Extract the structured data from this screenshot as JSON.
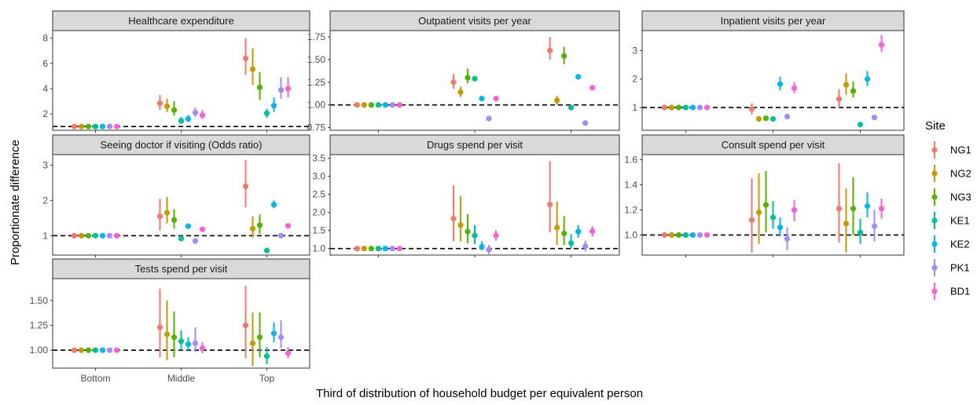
{
  "y_axis_title": "Proportionate difference",
  "x_axis_title": "Third of distribution of household budget per equivalent person",
  "legend": {
    "title": "Site",
    "entries": [
      {
        "name": "NG1",
        "color": "#F8766D"
      },
      {
        "name": "NG2",
        "color": "#C49A00"
      },
      {
        "name": "NG3",
        "color": "#53B400"
      },
      {
        "name": "KE1",
        "color": "#00C094"
      },
      {
        "name": "KE2",
        "color": "#00B6EB"
      },
      {
        "name": "PK1",
        "color": "#A58AFF"
      },
      {
        "name": "BD1",
        "color": "#FB61D7"
      }
    ]
  },
  "chart_data": [
    {
      "type": "scatter",
      "title": "Healthcare expenditure",
      "categories": [
        "Bottom",
        "Middle",
        "Top"
      ],
      "ylim": [
        0.7,
        8.6
      ],
      "yticks": [
        2,
        4,
        6,
        8
      ],
      "ytick_labels": [
        "2",
        "4",
        "6",
        "8"
      ],
      "reference_line": 1,
      "series": [
        {
          "name": "NG1",
          "values": [
            1.0,
            2.85,
            6.4
          ],
          "lower": [
            1.0,
            2.3,
            5.1
          ],
          "upper": [
            1.0,
            3.5,
            8.0
          ]
        },
        {
          "name": "NG2",
          "values": [
            1.0,
            2.6,
            5.55
          ],
          "lower": [
            1.0,
            2.15,
            4.3
          ],
          "upper": [
            1.0,
            3.2,
            7.2
          ]
        },
        {
          "name": "NG3",
          "values": [
            1.0,
            2.3,
            4.1
          ],
          "lower": [
            1.0,
            1.85,
            3.1
          ],
          "upper": [
            1.0,
            3.0,
            5.3
          ]
        },
        {
          "name": "KE1",
          "values": [
            1.0,
            1.45,
            2.05
          ],
          "lower": [
            1.0,
            1.25,
            1.7
          ],
          "upper": [
            1.0,
            1.75,
            2.4
          ]
        },
        {
          "name": "KE2",
          "values": [
            1.0,
            1.6,
            2.65
          ],
          "lower": [
            1.0,
            1.35,
            2.15
          ],
          "upper": [
            1.0,
            1.9,
            3.3
          ]
        },
        {
          "name": "PK1",
          "values": [
            1.0,
            2.1,
            3.9
          ],
          "lower": [
            1.0,
            1.75,
            3.2
          ],
          "upper": [
            1.0,
            2.5,
            4.9
          ]
        },
        {
          "name": "BD1",
          "values": [
            1.0,
            1.9,
            4.0
          ],
          "lower": [
            1.0,
            1.6,
            3.3
          ],
          "upper": [
            1.0,
            2.3,
            4.9
          ]
        }
      ]
    },
    {
      "type": "scatter",
      "title": "Outpatient visits per year",
      "categories": [
        "Bottom",
        "Middle",
        "Top"
      ],
      "ylim": [
        0.72,
        1.82
      ],
      "yticks": [
        0.75,
        1.0,
        1.25,
        1.5,
        1.75
      ],
      "ytick_labels": [
        "0.75",
        "1.00",
        "1.25",
        "1.50",
        "1.75"
      ],
      "reference_line": 1,
      "series": [
        {
          "name": "NG1",
          "values": [
            1.0,
            1.25,
            1.6
          ],
          "lower": [
            1.0,
            1.18,
            1.5
          ],
          "upper": [
            1.0,
            1.34,
            1.75
          ]
        },
        {
          "name": "NG2",
          "values": [
            1.0,
            1.14,
            1.05
          ],
          "lower": [
            1.0,
            1.09,
            1.0
          ],
          "upper": [
            1.0,
            1.2,
            1.1
          ]
        },
        {
          "name": "NG3",
          "values": [
            1.0,
            1.3,
            1.54
          ],
          "lower": [
            1.0,
            1.24,
            1.45
          ],
          "upper": [
            1.0,
            1.4,
            1.64
          ]
        },
        {
          "name": "KE1",
          "values": [
            1.0,
            1.29,
            0.97
          ],
          "lower": [
            1.0,
            1.27,
            0.95
          ],
          "upper": [
            1.0,
            1.31,
            0.99
          ]
        },
        {
          "name": "KE2",
          "values": [
            1.0,
            1.07,
            1.31
          ],
          "lower": [
            1.0,
            1.05,
            1.29
          ],
          "upper": [
            1.0,
            1.09,
            1.33
          ]
        },
        {
          "name": "PK1",
          "values": [
            1.0,
            0.85,
            0.8
          ],
          "lower": [
            1.0,
            0.84,
            0.79
          ],
          "upper": [
            1.0,
            0.86,
            0.81
          ]
        },
        {
          "name": "BD1",
          "values": [
            1.0,
            1.07,
            1.19
          ],
          "lower": [
            1.0,
            1.05,
            1.17
          ],
          "upper": [
            1.0,
            1.09,
            1.21
          ]
        }
      ]
    },
    {
      "type": "scatter",
      "title": "Inpatient visits per year",
      "categories": [
        "Bottom",
        "Middle",
        "Top"
      ],
      "ylim": [
        0.2,
        3.7
      ],
      "yticks": [
        1,
        2,
        3
      ],
      "ytick_labels": [
        "1",
        "2",
        "3"
      ],
      "reference_line": 1,
      "series": [
        {
          "name": "NG1",
          "values": [
            1.0,
            0.95,
            1.3
          ],
          "lower": [
            1.0,
            0.75,
            1.0
          ],
          "upper": [
            1.0,
            1.15,
            1.65
          ]
        },
        {
          "name": "NG2",
          "values": [
            1.0,
            0.6,
            1.8
          ],
          "lower": [
            1.0,
            0.5,
            1.45
          ],
          "upper": [
            1.0,
            0.7,
            2.2
          ]
        },
        {
          "name": "NG3",
          "values": [
            1.0,
            0.62,
            1.58
          ],
          "lower": [
            1.0,
            0.55,
            1.35
          ],
          "upper": [
            1.0,
            0.72,
            1.92
          ]
        },
        {
          "name": "KE1",
          "values": [
            1.0,
            0.6,
            0.4
          ],
          "lower": [
            1.0,
            0.58,
            0.38
          ],
          "upper": [
            1.0,
            0.62,
            0.42
          ]
        },
        {
          "name": "KE2",
          "values": [
            1.0,
            1.82,
            2.0
          ],
          "lower": [
            1.0,
            1.6,
            1.75
          ],
          "upper": [
            1.0,
            2.08,
            2.28
          ]
        },
        {
          "name": "PK1",
          "values": [
            1.0,
            0.68,
            0.65
          ],
          "lower": [
            1.0,
            0.66,
            0.63
          ],
          "upper": [
            1.0,
            0.7,
            0.67
          ]
        },
        {
          "name": "BD1",
          "values": [
            1.0,
            1.68,
            3.2
          ],
          "lower": [
            1.0,
            1.5,
            2.95
          ],
          "upper": [
            1.0,
            1.9,
            3.55
          ]
        }
      ]
    },
    {
      "type": "scatter",
      "title": "Seeing doctor if visiting (Odds ratio)",
      "categories": [
        "Bottom",
        "Middle",
        "Top"
      ],
      "ylim": [
        0.45,
        3.3
      ],
      "yticks": [
        1,
        2,
        3
      ],
      "ytick_labels": [
        "1",
        "2",
        "3"
      ],
      "reference_line": 1,
      "series": [
        {
          "name": "NG1",
          "values": [
            1.0,
            1.55,
            2.4
          ],
          "lower": [
            1.0,
            1.15,
            1.8
          ],
          "upper": [
            1.0,
            2.05,
            3.15
          ]
        },
        {
          "name": "NG2",
          "values": [
            1.0,
            1.65,
            1.2
          ],
          "lower": [
            1.0,
            1.35,
            0.95
          ],
          "upper": [
            1.0,
            2.1,
            1.55
          ]
        },
        {
          "name": "NG3",
          "values": [
            1.0,
            1.45,
            1.3
          ],
          "lower": [
            1.0,
            1.2,
            1.05
          ],
          "upper": [
            1.0,
            1.75,
            1.6
          ]
        },
        {
          "name": "KE1",
          "values": [
            1.0,
            0.92,
            0.58
          ],
          "lower": [
            1.0,
            0.9,
            0.56
          ],
          "upper": [
            1.0,
            0.94,
            0.6
          ]
        },
        {
          "name": "KE2",
          "values": [
            1.0,
            1.27,
            1.88
          ],
          "lower": [
            1.0,
            1.25,
            1.78
          ],
          "upper": [
            1.0,
            1.29,
            2.0
          ]
        },
        {
          "name": "PK1",
          "values": [
            1.0,
            0.85,
            1.0
          ],
          "lower": [
            1.0,
            0.83,
            0.95
          ],
          "upper": [
            1.0,
            0.87,
            1.05
          ]
        },
        {
          "name": "BD1",
          "values": [
            1.0,
            1.18,
            1.28
          ],
          "lower": [
            1.0,
            1.16,
            1.26
          ],
          "upper": [
            1.0,
            1.2,
            1.3
          ]
        }
      ]
    },
    {
      "type": "scatter",
      "title": "Drugs spend per visit",
      "categories": [
        "Bottom",
        "Middle",
        "Top"
      ],
      "ylim": [
        0.82,
        3.6
      ],
      "yticks": [
        1.0,
        1.5,
        2.0,
        2.5,
        3.0,
        3.5
      ],
      "ytick_labels": [
        "1.0",
        "1.5",
        "2.0",
        "2.5",
        "3.0",
        "3.5"
      ],
      "reference_line": 1,
      "series": [
        {
          "name": "NG1",
          "values": [
            1.0,
            1.83,
            2.22
          ],
          "lower": [
            1.0,
            1.2,
            1.45
          ],
          "upper": [
            1.0,
            2.75,
            3.42
          ]
        },
        {
          "name": "NG2",
          "values": [
            1.0,
            1.65,
            1.58
          ],
          "lower": [
            1.0,
            1.2,
            1.1
          ],
          "upper": [
            1.0,
            2.45,
            2.3
          ]
        },
        {
          "name": "NG3",
          "values": [
            1.0,
            1.47,
            1.42
          ],
          "lower": [
            1.0,
            1.15,
            1.1
          ],
          "upper": [
            1.0,
            1.95,
            1.9
          ]
        },
        {
          "name": "KE1",
          "values": [
            1.0,
            1.36,
            1.15
          ],
          "lower": [
            1.0,
            1.12,
            1.0
          ],
          "upper": [
            1.0,
            1.65,
            1.4
          ]
        },
        {
          "name": "KE2",
          "values": [
            1.0,
            1.05,
            1.47
          ],
          "lower": [
            1.0,
            0.95,
            1.3
          ],
          "upper": [
            1.0,
            1.2,
            1.65
          ]
        },
        {
          "name": "PK1",
          "values": [
            1.0,
            0.97,
            1.06
          ],
          "lower": [
            1.0,
            0.85,
            0.92
          ],
          "upper": [
            1.0,
            1.1,
            1.22
          ]
        },
        {
          "name": "BD1",
          "values": [
            1.0,
            1.36,
            1.48
          ],
          "lower": [
            1.0,
            1.22,
            1.33
          ],
          "upper": [
            1.0,
            1.5,
            1.62
          ]
        }
      ]
    },
    {
      "type": "scatter",
      "title": "Consult spend per visit",
      "categories": [
        "Bottom",
        "Middle",
        "Top"
      ],
      "ylim": [
        0.84,
        1.64
      ],
      "yticks": [
        1.0,
        1.2,
        1.4,
        1.6
      ],
      "ytick_labels": [
        "1.0",
        "1.2",
        "1.4",
        "1.6"
      ],
      "reference_line": 1,
      "series": [
        {
          "name": "NG1",
          "values": [
            1.0,
            1.12,
            1.21
          ],
          "lower": [
            1.0,
            0.86,
            0.94
          ],
          "upper": [
            1.0,
            1.45,
            1.57
          ]
        },
        {
          "name": "NG2",
          "values": [
            1.0,
            1.18,
            1.09
          ],
          "lower": [
            1.0,
            0.93,
            0.86
          ],
          "upper": [
            1.0,
            1.49,
            1.37
          ]
        },
        {
          "name": "NG3",
          "values": [
            1.0,
            1.24,
            1.21
          ],
          "lower": [
            1.0,
            1.02,
            1.0
          ],
          "upper": [
            1.0,
            1.51,
            1.46
          ]
        },
        {
          "name": "KE1",
          "values": [
            1.0,
            1.14,
            1.02
          ],
          "lower": [
            1.0,
            1.05,
            0.93
          ],
          "upper": [
            1.0,
            1.27,
            1.13
          ]
        },
        {
          "name": "KE2",
          "values": [
            1.0,
            1.06,
            1.23
          ],
          "lower": [
            1.0,
            0.99,
            1.14
          ],
          "upper": [
            1.0,
            1.14,
            1.34
          ]
        },
        {
          "name": "PK1",
          "values": [
            1.0,
            0.97,
            1.07
          ],
          "lower": [
            1.0,
            0.88,
            0.95
          ],
          "upper": [
            1.0,
            1.06,
            1.2
          ]
        },
        {
          "name": "BD1",
          "values": [
            1.0,
            1.2,
            1.21
          ],
          "lower": [
            1.0,
            1.11,
            1.13
          ],
          "upper": [
            1.0,
            1.28,
            1.29
          ]
        }
      ]
    },
    {
      "type": "scatter",
      "title": "Tests spend per visit",
      "categories": [
        "Bottom",
        "Middle",
        "Top"
      ],
      "ylim": [
        0.82,
        1.72
      ],
      "yticks": [
        1.0,
        1.25,
        1.5
      ],
      "ytick_labels": [
        "1.00",
        "1.25",
        "1.50"
      ],
      "reference_line": 1,
      "series": [
        {
          "name": "NG1",
          "values": [
            1.0,
            1.23,
            1.25
          ],
          "lower": [
            1.0,
            0.93,
            0.92
          ],
          "upper": [
            1.0,
            1.62,
            1.65
          ]
        },
        {
          "name": "NG2",
          "values": [
            1.0,
            1.16,
            1.07
          ],
          "lower": [
            1.0,
            0.9,
            0.84
          ],
          "upper": [
            1.0,
            1.5,
            1.38
          ]
        },
        {
          "name": "NG3",
          "values": [
            1.0,
            1.13,
            1.13
          ],
          "lower": [
            1.0,
            0.93,
            0.93
          ],
          "upper": [
            1.0,
            1.39,
            1.38
          ]
        },
        {
          "name": "KE1",
          "values": [
            1.0,
            1.09,
            0.94
          ],
          "lower": [
            1.0,
            1.0,
            0.86
          ],
          "upper": [
            1.0,
            1.2,
            1.03
          ]
        },
        {
          "name": "KE2",
          "values": [
            1.0,
            1.06,
            1.17
          ],
          "lower": [
            1.0,
            1.0,
            1.08
          ],
          "upper": [
            1.0,
            1.13,
            1.28
          ]
        },
        {
          "name": "PK1",
          "values": [
            1.0,
            1.07,
            1.13
          ],
          "lower": [
            1.0,
            0.98,
            1.02
          ],
          "upper": [
            1.0,
            1.23,
            1.3
          ]
        },
        {
          "name": "BD1",
          "values": [
            1.0,
            1.02,
            0.97
          ],
          "lower": [
            1.0,
            0.97,
            0.92
          ],
          "upper": [
            1.0,
            1.08,
            1.03
          ]
        }
      ]
    }
  ]
}
